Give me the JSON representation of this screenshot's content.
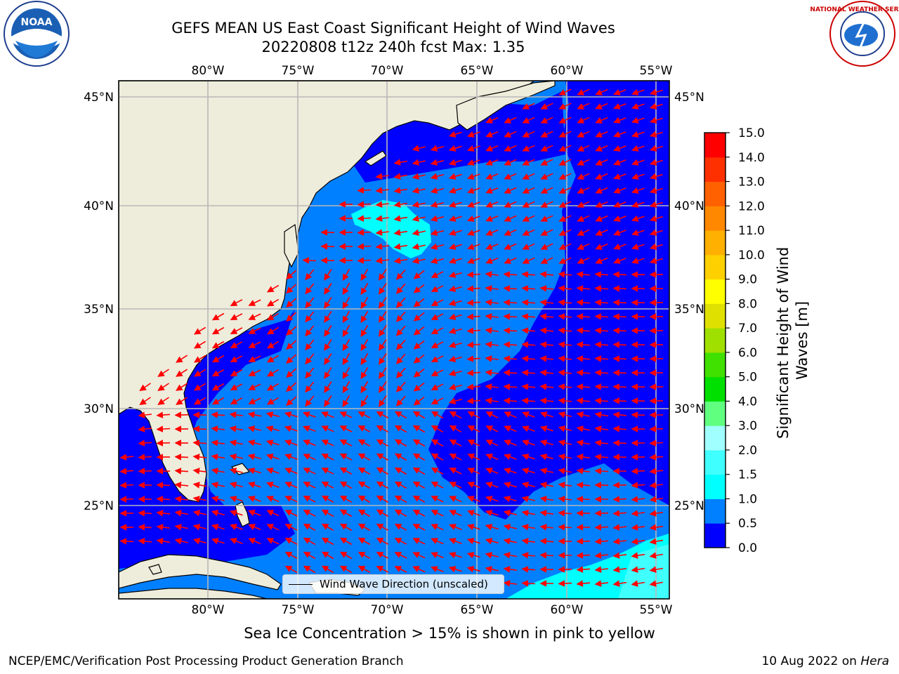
{
  "title": {
    "line1": "GEFS MEAN US East Coast Significant Height of Wind Waves",
    "line2": "20220808 t12z 240h fcst   Max: 1.35"
  },
  "logos": {
    "left": {
      "name": "noaa-logo",
      "text": "NOAA"
    },
    "right": {
      "name": "national-weather-service-logo",
      "text": "NATIONAL WEATHER SERVICE"
    }
  },
  "map": {
    "lon_ticks": [
      "80°W",
      "75°W",
      "70°W",
      "65°W",
      "60°W",
      "55°W"
    ],
    "lat_ticks": [
      "45°N",
      "40°N",
      "35°N",
      "30°N",
      "25°N"
    ],
    "lon_range": [
      -85,
      -54.5
    ],
    "lat_range": [
      20,
      46
    ],
    "gridlines": true,
    "land_color": "#eeecdb",
    "gridline_color": "#b8b8b8",
    "arrow_color": "#ff0000",
    "legend": {
      "label": "Wind Wave Direction (unscaled)",
      "placement": "bottom-center"
    }
  },
  "colorbar": {
    "title": "Significant Height of Wind Waves [m]",
    "ticks": [
      "0.0",
      "0.5",
      "1.0",
      "1.5",
      "2.0",
      "3.0",
      "4.0",
      "5.0",
      "6.0",
      "7.0",
      "8.0",
      "9.0",
      "10.0",
      "11.0",
      "12.0",
      "13.0",
      "14.0",
      "15.0"
    ],
    "colors": [
      "#0000ff",
      "#0080ff",
      "#00ffff",
      "#40ffff",
      "#a0ffff",
      "#60ff80",
      "#00e000",
      "#40e000",
      "#a0e000",
      "#e0e000",
      "#ffff00",
      "#ffd000",
      "#ffb000",
      "#ff8800",
      "#ff6000",
      "#ff3000",
      "#ff0000"
    ]
  },
  "caption": "Sea Ice Concentration > 15% is shown in pink to yellow",
  "footer": {
    "left": "NCEP/EMC/Verification Post Processing Product Generation Branch",
    "right_date": "10 Aug 2022 on ",
    "right_host": "Hera"
  }
}
